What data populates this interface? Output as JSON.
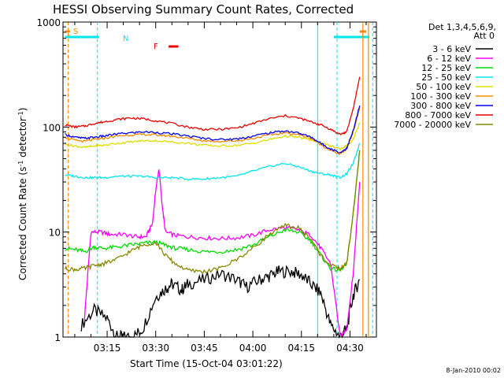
{
  "chart_data": {
    "type": "line",
    "title": "HESSI Observing Summary Count Rates, Corrected",
    "xlabel": "Start Time (15-Oct-04 03:01:22)",
    "ylabel_main": "Corrected Count Rate (s",
    "ylabel_sup1": "-1",
    "ylabel_mid": " detector",
    "ylabel_sup2": "-1",
    "ylabel_end": ")",
    "y_scale": "log",
    "ylim": [
      1,
      1000
    ],
    "xlim": [
      "03:01:22",
      "04:38:10"
    ],
    "x_ticks": [
      "03:15",
      "03:30",
      "03:45",
      "04:00",
      "04:15",
      "04:30"
    ],
    "y_ticks": [
      "1",
      "10",
      "100",
      "1000"
    ],
    "footer_date": "8-Jan-2010 00:02",
    "legend": {
      "header1": "Det 1,3,4,5,6,9,",
      "header2": "Att 0",
      "placement": "right"
    },
    "flags": {
      "saa_label": "S",
      "night_label": "N",
      "flare_label": "F",
      "colors": {
        "saa": "#ff8800",
        "night": "#00e5ee",
        "flare": "#ee0000"
      }
    },
    "series": [
      {
        "name": "3 - 6 keV",
        "color": "#000000",
        "points": [
          [
            "03:07",
            1.3
          ],
          [
            "03:11",
            1.8
          ],
          [
            "03:15",
            1.5
          ],
          [
            "03:18",
            1.0
          ],
          [
            "03:20",
            1.0
          ],
          [
            "03:23",
            1.0
          ],
          [
            "03:26",
            1.2
          ],
          [
            "03:30",
            2.4
          ],
          [
            "03:33",
            2.9
          ],
          [
            "03:35",
            3.2
          ],
          [
            "03:38",
            2.8
          ],
          [
            "03:40",
            3.2
          ],
          [
            "03:45",
            3.5
          ],
          [
            "03:50",
            4.0
          ],
          [
            "03:55",
            3.5
          ],
          [
            "03:58",
            3.0
          ],
          [
            "04:02",
            3.5
          ],
          [
            "04:05",
            3.8
          ],
          [
            "04:08",
            4.2
          ],
          [
            "04:12",
            4.2
          ],
          [
            "04:15",
            3.9
          ],
          [
            "04:18",
            3.2
          ],
          [
            "04:21",
            2.6
          ],
          [
            "04:24",
            1.3
          ],
          [
            "04:27",
            1.0
          ],
          [
            "04:29",
            1.2
          ],
          [
            "04:31",
            2.5
          ],
          [
            "04:33",
            3.5
          ]
        ]
      },
      {
        "name": "6 - 12 keV",
        "color": "#ff00ff",
        "points": [
          [
            "03:08",
            1.5
          ],
          [
            "03:10",
            10
          ],
          [
            "03:13",
            10
          ],
          [
            "03:16",
            9.5
          ],
          [
            "03:20",
            9.5
          ],
          [
            "03:24",
            9.0
          ],
          [
            "03:27",
            9.0
          ],
          [
            "03:29",
            12
          ],
          [
            "03:30",
            25
          ],
          [
            "03:31",
            40
          ],
          [
            "03:32",
            18
          ],
          [
            "03:33",
            10
          ],
          [
            "03:36",
            9.3
          ],
          [
            "03:40",
            9.0
          ],
          [
            "03:45",
            8.8
          ],
          [
            "03:50",
            8.7
          ],
          [
            "03:55",
            8.8
          ],
          [
            "04:00",
            9.3
          ],
          [
            "04:05",
            10.5
          ],
          [
            "04:10",
            11
          ],
          [
            "04:14",
            10.5
          ],
          [
            "04:18",
            9.3
          ],
          [
            "04:21",
            7.0
          ],
          [
            "04:24",
            5.0
          ],
          [
            "04:27",
            1.0
          ],
          [
            "04:29",
            1.2
          ],
          [
            "04:31",
            4
          ],
          [
            "04:33",
            30
          ]
        ]
      },
      {
        "name": "12 - 25 keV",
        "color": "#00dd00",
        "points": [
          [
            "03:02",
            7.0
          ],
          [
            "03:05",
            6.8
          ],
          [
            "03:08",
            6.5
          ],
          [
            "03:11",
            7.2
          ],
          [
            "03:14",
            7.0
          ],
          [
            "03:18",
            7.2
          ],
          [
            "03:22",
            7.5
          ],
          [
            "03:26",
            7.8
          ],
          [
            "03:30",
            8.0
          ],
          [
            "03:33",
            7.5
          ],
          [
            "03:36",
            7.0
          ],
          [
            "03:40",
            6.8
          ],
          [
            "03:45",
            6.5
          ],
          [
            "03:50",
            6.5
          ],
          [
            "03:55",
            6.8
          ],
          [
            "04:00",
            7.5
          ],
          [
            "04:05",
            9.0
          ],
          [
            "04:10",
            10.5
          ],
          [
            "04:14",
            10.0
          ],
          [
            "04:18",
            8.2
          ],
          [
            "04:21",
            6.0
          ],
          [
            "04:24",
            4.5
          ],
          [
            "04:27",
            4.3
          ],
          [
            "04:29",
            5.0
          ],
          [
            "04:31",
            15
          ],
          [
            "04:33",
            60
          ]
        ]
      },
      {
        "name": "25 - 50 keV",
        "color": "#00e5ee",
        "points": [
          [
            "03:02",
            35
          ],
          [
            "03:05",
            34
          ],
          [
            "03:08",
            33
          ],
          [
            "03:11",
            33
          ],
          [
            "03:14",
            33
          ],
          [
            "03:18",
            34
          ],
          [
            "03:22",
            34
          ],
          [
            "03:26",
            34
          ],
          [
            "03:30",
            33
          ],
          [
            "03:35",
            33
          ],
          [
            "03:40",
            32
          ],
          [
            "03:45",
            32
          ],
          [
            "03:50",
            33
          ],
          [
            "03:55",
            34
          ],
          [
            "04:00",
            38
          ],
          [
            "04:05",
            42
          ],
          [
            "04:10",
            45
          ],
          [
            "04:14",
            42
          ],
          [
            "04:18",
            38
          ],
          [
            "04:21",
            36
          ],
          [
            "04:24",
            35
          ],
          [
            "04:27",
            33
          ],
          [
            "04:29",
            36
          ],
          [
            "04:31",
            45
          ],
          [
            "04:33",
            70
          ]
        ]
      },
      {
        "name": "50 - 100 keV",
        "color": "#dddd00",
        "points": [
          [
            "03:02",
            68
          ],
          [
            "03:05",
            66
          ],
          [
            "03:08",
            64
          ],
          [
            "03:11",
            66
          ],
          [
            "03:14",
            67
          ],
          [
            "03:18",
            70
          ],
          [
            "03:22",
            72
          ],
          [
            "03:26",
            74
          ],
          [
            "03:30",
            74
          ],
          [
            "03:35",
            72
          ],
          [
            "03:40",
            70
          ],
          [
            "03:45",
            67
          ],
          [
            "03:50",
            66
          ],
          [
            "03:55",
            67
          ],
          [
            "04:00",
            70
          ],
          [
            "04:05",
            76
          ],
          [
            "04:10",
            82
          ],
          [
            "04:14",
            80
          ],
          [
            "04:18",
            75
          ],
          [
            "04:21",
            70
          ],
          [
            "04:24",
            66
          ],
          [
            "04:27",
            62
          ],
          [
            "04:29",
            66
          ],
          [
            "04:31",
            75
          ],
          [
            "04:33",
            110
          ]
        ]
      },
      {
        "name": "100 - 300 keV",
        "color": "#ff8800",
        "points": [
          [
            "03:02",
            80
          ],
          [
            "03:05",
            75
          ],
          [
            "03:08",
            73
          ],
          [
            "03:11",
            76
          ],
          [
            "03:14",
            78
          ],
          [
            "03:18",
            82
          ],
          [
            "03:22",
            84
          ],
          [
            "03:26",
            85
          ],
          [
            "03:30",
            84
          ],
          [
            "03:35",
            82
          ],
          [
            "03:40",
            78
          ],
          [
            "03:45",
            74
          ],
          [
            "03:50",
            73
          ],
          [
            "03:55",
            74
          ],
          [
            "04:00",
            78
          ],
          [
            "04:05",
            84
          ],
          [
            "04:10",
            88
          ],
          [
            "04:14",
            85
          ],
          [
            "04:18",
            78
          ],
          [
            "04:21",
            68
          ],
          [
            "04:24",
            60
          ],
          [
            "04:27",
            55
          ],
          [
            "04:29",
            62
          ],
          [
            "04:31",
            90
          ],
          [
            "04:33",
            150
          ]
        ]
      },
      {
        "name": "300 - 800 keV",
        "color": "#0000ee",
        "points": [
          [
            "03:02",
            85
          ],
          [
            "03:05",
            80
          ],
          [
            "03:08",
            78
          ],
          [
            "03:11",
            80
          ],
          [
            "03:14",
            82
          ],
          [
            "03:18",
            86
          ],
          [
            "03:22",
            88
          ],
          [
            "03:26",
            90
          ],
          [
            "03:30",
            89
          ],
          [
            "03:35",
            86
          ],
          [
            "03:40",
            82
          ],
          [
            "03:45",
            78
          ],
          [
            "03:50",
            76
          ],
          [
            "03:55",
            77
          ],
          [
            "04:00",
            82
          ],
          [
            "04:05",
            88
          ],
          [
            "04:10",
            92
          ],
          [
            "04:14",
            88
          ],
          [
            "04:18",
            80
          ],
          [
            "04:21",
            70
          ],
          [
            "04:24",
            62
          ],
          [
            "04:27",
            57
          ],
          [
            "04:29",
            63
          ],
          [
            "04:31",
            92
          ],
          [
            "04:33",
            160
          ]
        ]
      },
      {
        "name": "800 - 7000 keV",
        "color": "#ee0000",
        "points": [
          [
            "03:02",
            105
          ],
          [
            "03:05",
            100
          ],
          [
            "03:08",
            102
          ],
          [
            "03:11",
            108
          ],
          [
            "03:14",
            112
          ],
          [
            "03:18",
            118
          ],
          [
            "03:22",
            122
          ],
          [
            "03:26",
            120
          ],
          [
            "03:30",
            115
          ],
          [
            "03:35",
            108
          ],
          [
            "03:40",
            100
          ],
          [
            "03:45",
            95
          ],
          [
            "03:50",
            95
          ],
          [
            "03:55",
            98
          ],
          [
            "04:00",
            108
          ],
          [
            "04:05",
            120
          ],
          [
            "04:10",
            128
          ],
          [
            "04:14",
            122
          ],
          [
            "04:18",
            112
          ],
          [
            "04:21",
            105
          ],
          [
            "04:24",
            95
          ],
          [
            "04:27",
            85
          ],
          [
            "04:29",
            90
          ],
          [
            "04:31",
            150
          ],
          [
            "04:33",
            300
          ]
        ]
      },
      {
        "name": "7000 - 20000 keV",
        "color": "#888800",
        "points": [
          [
            "03:02",
            4.5
          ],
          [
            "03:05",
            4.4
          ],
          [
            "03:08",
            4.5
          ],
          [
            "03:11",
            4.8
          ],
          [
            "03:14",
            5.0
          ],
          [
            "03:18",
            5.5
          ],
          [
            "03:22",
            6.5
          ],
          [
            "03:26",
            7.5
          ],
          [
            "03:30",
            8.0
          ],
          [
            "03:33",
            6.0
          ],
          [
            "03:36",
            5.0
          ],
          [
            "03:40",
            4.3
          ],
          [
            "03:45",
            4.2
          ],
          [
            "03:50",
            4.5
          ],
          [
            "03:55",
            5.5
          ],
          [
            "04:00",
            7.0
          ],
          [
            "04:05",
            9.5
          ],
          [
            "04:10",
            11.5
          ],
          [
            "04:14",
            11
          ],
          [
            "04:18",
            8.5
          ],
          [
            "04:21",
            6.0
          ],
          [
            "04:24",
            4.8
          ],
          [
            "04:27",
            4.5
          ],
          [
            "04:29",
            5.0
          ],
          [
            "04:31",
            15
          ],
          [
            "04:33",
            60
          ]
        ]
      }
    ],
    "saa_intervals": [
      [
        "03:02:00",
        "03:03:30"
      ],
      [
        "04:33:00",
        "04:35:00"
      ]
    ],
    "night_intervals": [
      [
        "03:02:00",
        "03:12:30"
      ],
      [
        "04:25:00",
        "04:36:00"
      ]
    ],
    "flare_intervals": [
      [
        "03:34:00",
        "03:37:00"
      ]
    ],
    "saa_markers": [
      "03:03",
      "04:34"
    ],
    "night_markers": [
      "03:12",
      "04:20",
      "04:26",
      "04:37"
    ],
    "spike_series_marker": "04:31"
  }
}
